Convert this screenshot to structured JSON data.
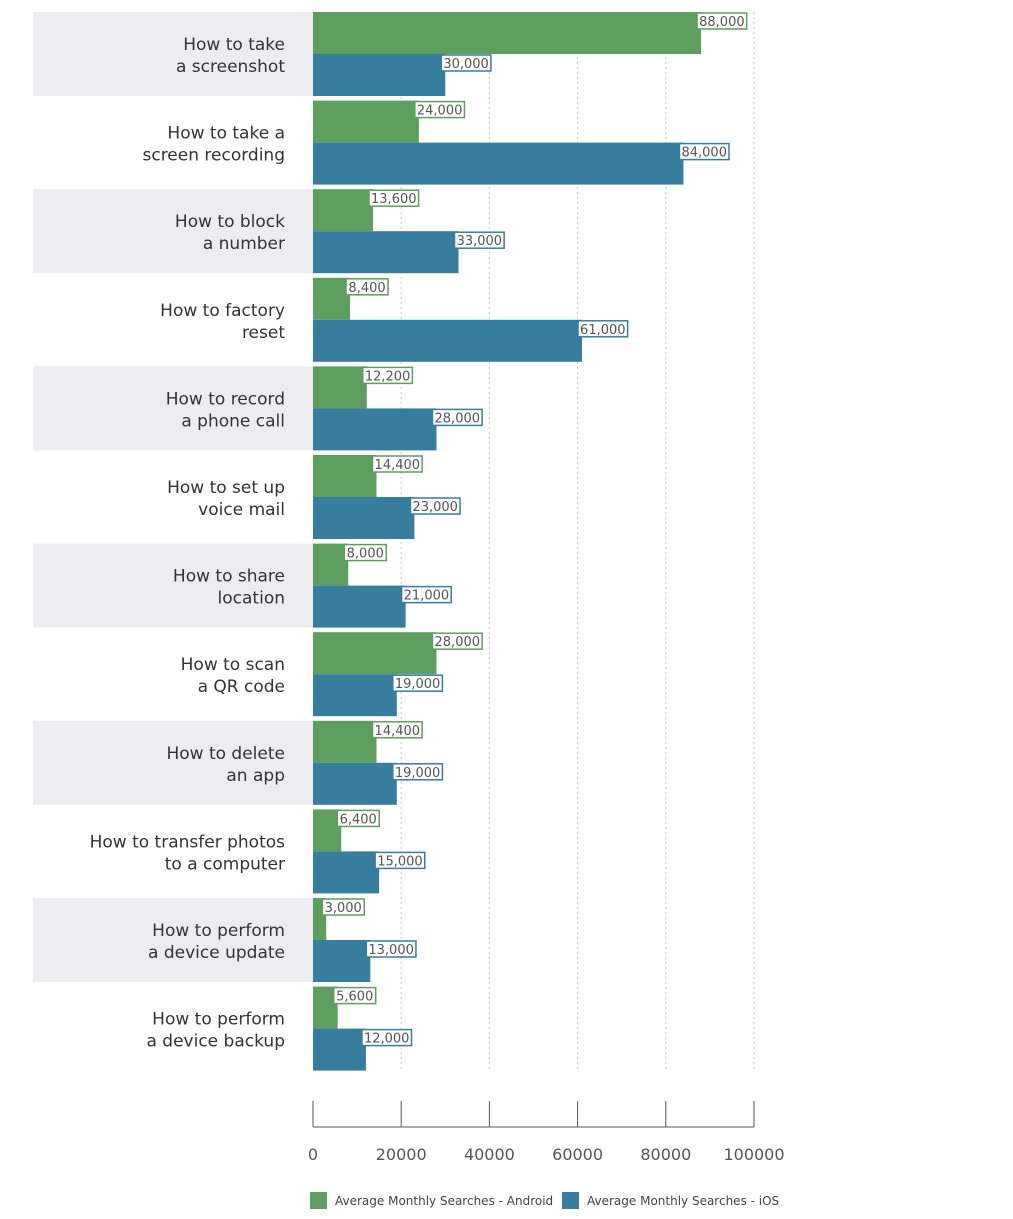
{
  "chart_data": {
    "type": "bar",
    "orientation": "horizontal",
    "categories": [
      [
        "How to take",
        "a screenshot"
      ],
      [
        "How to take a",
        "screen recording"
      ],
      [
        "How to block",
        "a number"
      ],
      [
        "How to factory",
        "reset"
      ],
      [
        "How to record",
        "a phone call"
      ],
      [
        "How to set up",
        "voice mail"
      ],
      [
        "How to share",
        "location"
      ],
      [
        "How to scan",
        "a QR code"
      ],
      [
        "How to delete",
        "an app"
      ],
      [
        "How to transfer photos",
        "to a computer"
      ],
      [
        "How to perform",
        "a device update"
      ],
      [
        "How to perform",
        "a device backup"
      ]
    ],
    "series": [
      {
        "name": "Average Monthly Searches - Android",
        "color": "#5e9e5f",
        "values": [
          88000,
          24000,
          13600,
          8400,
          12200,
          14400,
          8000,
          28000,
          14400,
          6400,
          3000,
          5600
        ],
        "labels": [
          "88,000",
          "24,000",
          "13,600",
          "8,400",
          "12,200",
          "14,400",
          "8,000",
          "28,000",
          "14,400",
          "6,400",
          "3,000",
          "5,600"
        ]
      },
      {
        "name": "Average Monthly Searches - iOS",
        "color": "#377d9e",
        "values": [
          30000,
          84000,
          33000,
          61000,
          28000,
          23000,
          21000,
          19000,
          19000,
          15000,
          13000,
          12000
        ],
        "labels": [
          "30,000",
          "84,000",
          "33,000",
          "61,000",
          "28,000",
          "23,000",
          "21,000",
          "19,000",
          "19,000",
          "15,000",
          "13,000",
          "12,000"
        ]
      }
    ],
    "xlim": [
      0,
      100000
    ],
    "ticks": [
      0,
      20000,
      40000,
      60000,
      80000,
      100000
    ],
    "tick_labels": [
      "0",
      "20000",
      "40000",
      "60000",
      "80000",
      "100000"
    ],
    "band_color": "#ededf1",
    "grid": "vertical-dotted",
    "legend_position": "bottom-center"
  }
}
